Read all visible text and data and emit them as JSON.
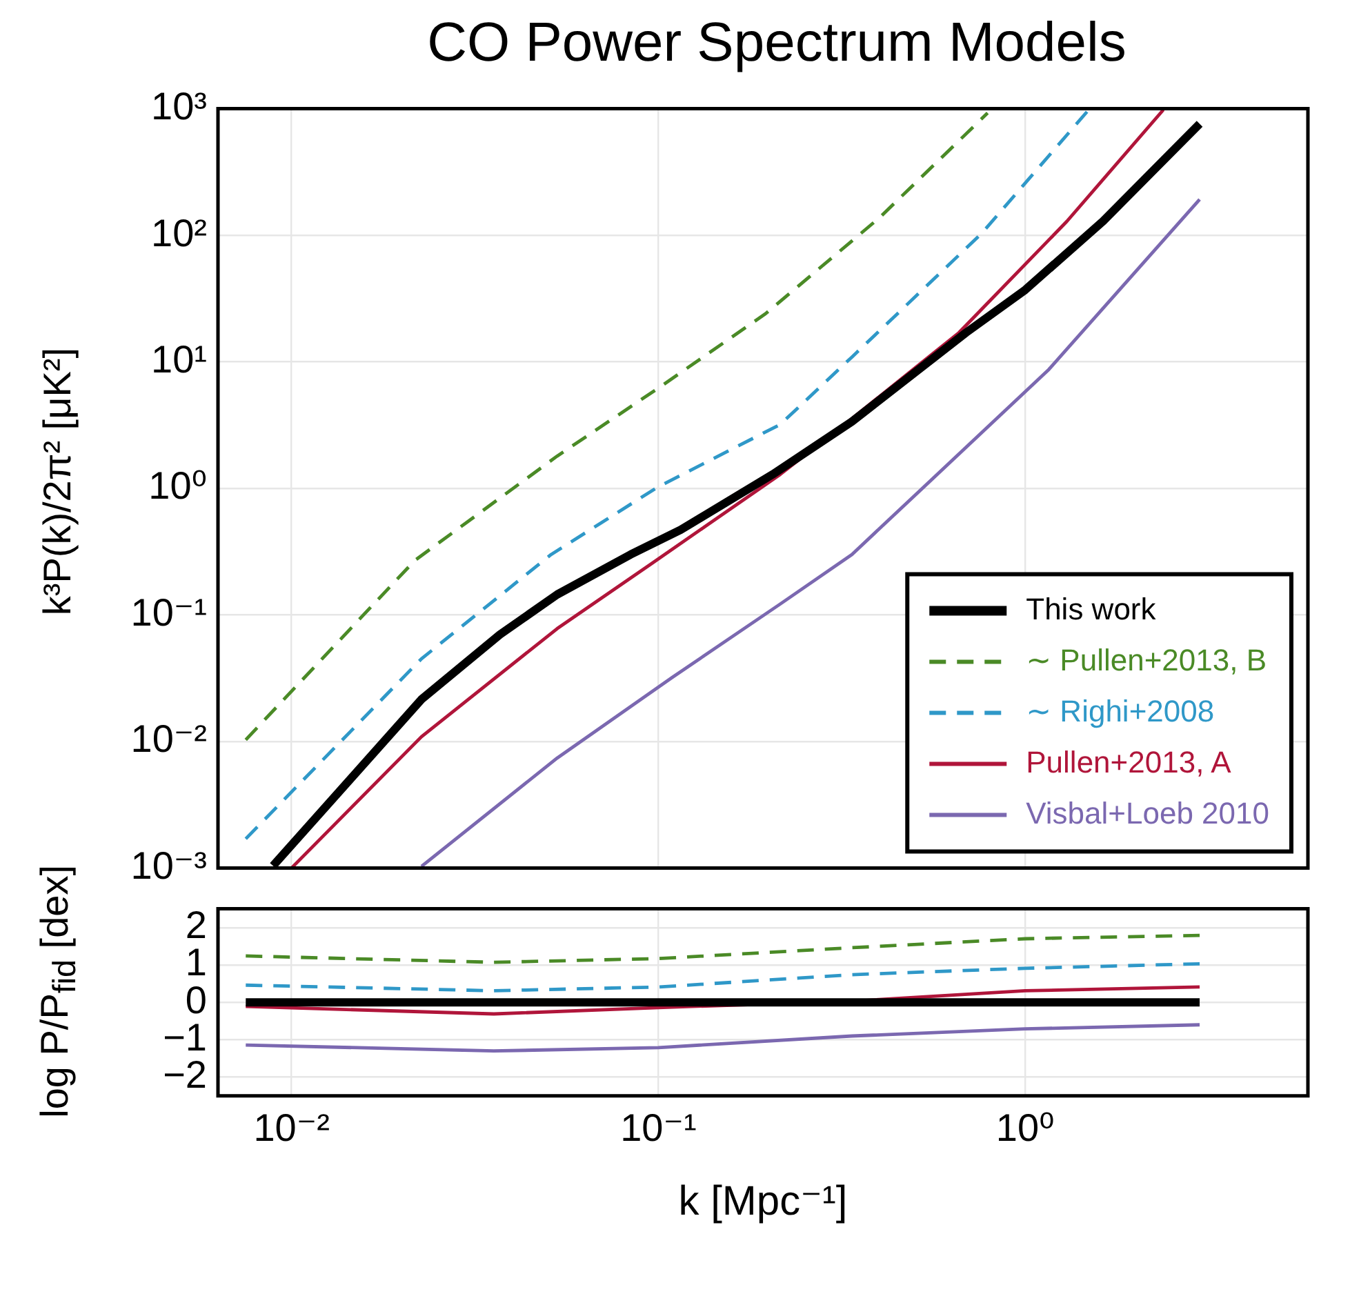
{
  "chart_data": [
    {
      "type": "line",
      "title": "CO Power Spectrum Models",
      "ylabel": "k³P(k)/2π² [μK²]",
      "log": "xy",
      "grid": true,
      "legend": "bottom right",
      "marker": "none",
      "tick_labels": "y",
      "xlim": [
        0.0063,
        5.9
      ],
      "xticks": [
        {
          "value": 0.01,
          "label": null
        },
        {
          "value": 0.1,
          "label": null
        },
        {
          "value": 1,
          "label": null
        }
      ],
      "ylim": [
        0.001,
        1000
      ],
      "yticks": [
        {
          "value": 0.001,
          "label": "10⁻³"
        },
        {
          "value": 0.01,
          "label": "10⁻²"
        },
        {
          "value": 0.1,
          "label": "10⁻¹"
        },
        {
          "value": 1,
          "label": "10⁰"
        },
        {
          "value": 10,
          "label": "10¹"
        },
        {
          "value": 100,
          "label": "10²"
        },
        {
          "value": 1000,
          "label": "10³"
        }
      ],
      "series": [
        {
          "name": "This work",
          "color": "#000000",
          "line_style": "solid",
          "x": [
            0.0089,
            0.0226,
            0.037,
            0.053,
            0.084,
            0.115,
            0.205,
            0.337,
            0.69,
            1,
            1.63,
            2.99
          ],
          "values": [
            0.00104,
            0.0215,
            0.07,
            0.145,
            0.3,
            0.47,
            1.29,
            3.37,
            17,
            37,
            129,
            760
          ]
        },
        {
          "name": "∼ Pullen+2013, B",
          "color": "#4a8a26",
          "line_style": "dashed",
          "x": [
            0.0075,
            0.0217,
            0.053,
            0.1,
            0.196,
            0.4,
            0.79
          ],
          "values": [
            0.0103,
            0.27,
            1.8,
            6.2,
            24,
            137,
            925
          ]
        },
        {
          "name": "∼ Righi+2008",
          "color": "#2f98c8",
          "line_style": "dashed",
          "x": [
            0.0075,
            0.0226,
            0.051,
            0.1,
            0.215,
            0.337,
            0.76,
            1.49
          ],
          "values": [
            0.0017,
            0.045,
            0.3,
            1.03,
            3.2,
            10.9,
            103,
            980
          ]
        },
        {
          "name": "Pullen+2013, A",
          "color": "#b0153a",
          "line_style": "solid",
          "x": [
            0.01,
            0.0226,
            0.053,
            0.095,
            0.215,
            0.337,
            0.66,
            1.3,
            2.38
          ],
          "values": [
            0.001,
            0.0109,
            0.078,
            0.25,
            1.29,
            3.56,
            17,
            129,
            980
          ]
        },
        {
          "name": "Visbal+Loeb 2010",
          "color": "#7b68b0",
          "line_style": "solid",
          "x": [
            0.0226,
            0.053,
            0.109,
            0.215,
            0.337,
            0.53,
            1.16,
            2.99
          ],
          "values": [
            0.00103,
            0.0074,
            0.032,
            0.122,
            0.3,
            1.03,
            8.7,
            192
          ]
        }
      ]
    },
    {
      "type": "line",
      "xlabel": "k [Mpc⁻¹]",
      "ylabel": "log P/P$_{fid}$ [dex]",
      "log": "x",
      "grid": true,
      "marker": "none",
      "xlim": [
        0.0063,
        5.9
      ],
      "xticks": [
        {
          "value": 0.01,
          "label": "10⁻²"
        },
        {
          "value": 0.1,
          "label": "10⁻¹"
        },
        {
          "value": 1,
          "label": "10⁰"
        }
      ],
      "ylim": [
        -2.5,
        2.5
      ],
      "yticks": [
        {
          "value": -2,
          "label": "−2"
        },
        {
          "value": -1,
          "label": "−1"
        },
        0,
        1,
        2
      ],
      "series": [
        {
          "color": "#000000",
          "line_style": "solid",
          "x": [
            0.0075,
            2.99
          ],
          "values": [
            0,
            0
          ]
        },
        {
          "color": "#4a8a26",
          "line_style": "dashed",
          "x": [
            0.0075,
            0.0356,
            0.1,
            0.337,
            1,
            2.99
          ],
          "values": [
            1.24,
            1.07,
            1.17,
            1.46,
            1.7,
            1.79
          ]
        },
        {
          "color": "#2f98c8",
          "line_style": "dashed",
          "x": [
            0.0075,
            0.0356,
            0.1,
            0.337,
            1,
            2.99
          ],
          "values": [
            0.46,
            0.31,
            0.41,
            0.74,
            0.91,
            1.03
          ]
        },
        {
          "color": "#b0153a",
          "line_style": "solid",
          "x": [
            0.0075,
            0.0356,
            0.1,
            0.337,
            1,
            2.99
          ],
          "values": [
            -0.11,
            -0.31,
            -0.14,
            0.03,
            0.31,
            0.41
          ]
        },
        {
          "color": "#7b68b0",
          "line_style": "solid",
          "x": [
            0.0075,
            0.0356,
            0.1,
            0.337,
            1,
            2.99
          ],
          "values": [
            -1.14,
            -1.3,
            -1.21,
            -0.9,
            -0.71,
            -0.6
          ]
        }
      ]
    }
  ]
}
